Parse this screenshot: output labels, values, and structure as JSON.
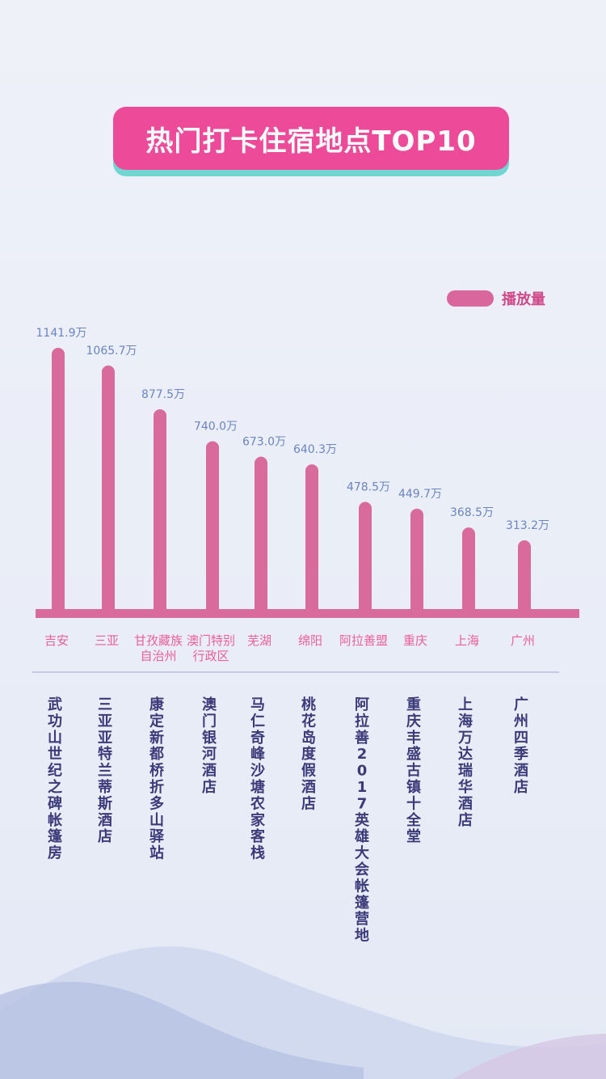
{
  "title": "热门打卡住宿地点TOP10",
  "legend": {
    "label": "播放量"
  },
  "colors": {
    "bar": "#d86a9c",
    "value_label": "#6c84c4",
    "category_label": "#ea5e9c",
    "hotel_label": "#3d3a7a",
    "title_bg": "#ee4a9a",
    "title_shadow": "#6fd6d2"
  },
  "chart_data": {
    "type": "bar",
    "title": "热门打卡住宿地点TOP10",
    "series": [
      {
        "name": "播放量",
        "values": [
          1141.9,
          1065.7,
          877.5,
          740.0,
          673.0,
          640.3,
          478.5,
          449.7,
          368.5,
          313.2
        ]
      }
    ],
    "categories": [
      [
        "吉安"
      ],
      [
        "三亚"
      ],
      [
        "甘孜藏族",
        "自治州"
      ],
      [
        "澳门特别",
        "行政区"
      ],
      [
        "芜湖"
      ],
      [
        "绵阳"
      ],
      [
        "阿拉善盟"
      ],
      [
        "重庆"
      ],
      [
        "上海"
      ],
      [
        "广州"
      ]
    ],
    "value_labels": [
      "1141.9万",
      "1065.7万",
      "877.5万",
      "740.0万",
      "673.0万",
      "640.3万",
      "478.5万",
      "449.7万",
      "368.5万",
      "313.2万"
    ],
    "hotels": [
      "武功山世纪之碑帐篷房",
      "三亚亚特兰蒂斯酒店",
      "康定新都桥折多山驿站",
      "澳门银河酒店",
      "马仁奇峰沙塘农家客栈",
      "桃花岛度假酒店",
      "阿拉善2017英雄大会帐篷营地",
      "重庆丰盛古镇十全堂",
      "上海万达瑞华酒店",
      "广州四季酒店"
    ],
    "ylim": [
      0,
      1141.9
    ],
    "legend_position": "top-right",
    "grid": false
  }
}
